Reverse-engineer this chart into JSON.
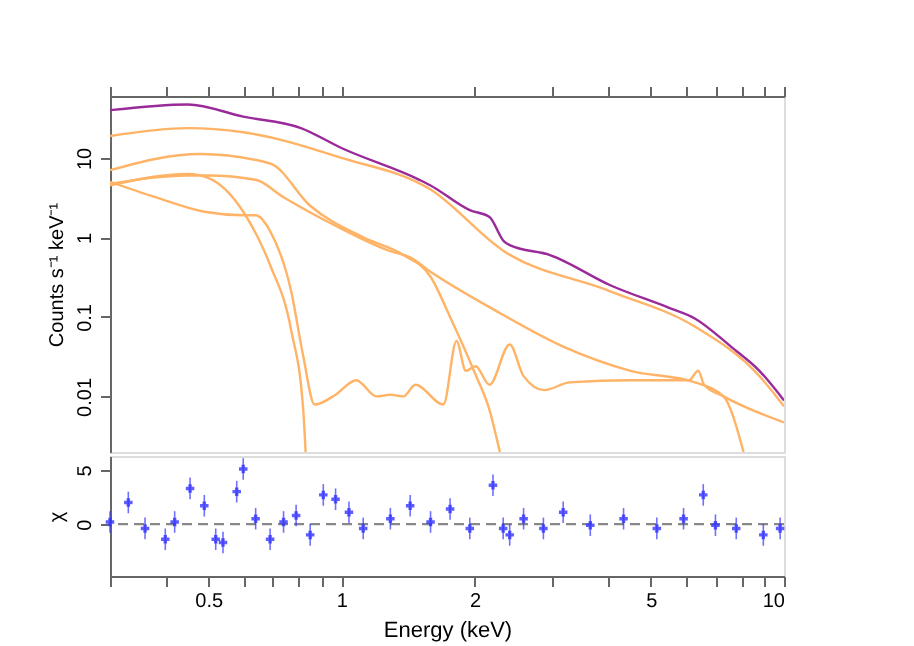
{
  "chart_data": [
    {
      "type": "line",
      "ylabel": "Counts s⁻¹ keV⁻¹",
      "log": "xy",
      "grid": false,
      "tick_labels": "y",
      "line_style": "solid",
      "xlim": [
        0.3,
        10
      ],
      "ylim": [
        0.002,
        60
      ],
      "xticks": [
        {
          "value": 0.3,
          "label": null
        },
        {
          "value": 0.4,
          "label": null
        },
        {
          "value": 0.5,
          "label": null
        },
        {
          "value": 0.6,
          "label": null
        },
        {
          "value": 0.7,
          "label": null
        },
        {
          "value": 0.8,
          "label": null
        },
        {
          "value": 0.9,
          "label": null
        },
        {
          "value": 1,
          "label": null
        },
        {
          "value": 2,
          "label": null
        },
        {
          "value": 3,
          "label": null
        },
        {
          "value": 4,
          "label": null
        },
        {
          "value": 5,
          "label": null
        },
        {
          "value": 6,
          "label": null
        },
        {
          "value": 7,
          "label": null
        },
        {
          "value": 8,
          "label": null
        },
        {
          "value": 9,
          "label": null
        },
        {
          "value": 10,
          "label": null
        }
      ],
      "yticks": [
        0.01,
        0.1,
        1,
        10
      ],
      "series": [
        {
          "color": "#ffb366",
          "x": [
            0.3,
            0.45,
            0.6,
            1.0,
            1.59,
            2.33,
            4.05,
            6.3,
            8.8,
            10
          ],
          "values": [
            18.8,
            23.7,
            21,
            10,
            4,
            0.67,
            0.21,
            0.075,
            0.018,
            0.0075
          ]
        },
        {
          "color": "#ffb366",
          "x": [
            0.3,
            0.48,
            0.69,
            0.85,
            1.12,
            1.38,
            1.59,
            1.76,
            2.0,
            2.16,
            2.28
          ],
          "values": [
            7.0,
            11.2,
            8.5,
            2.5,
            1,
            0.6,
            0.32,
            0.1,
            0.02,
            0.0068,
            0.002
          ]
        },
        {
          "color": "#ffb366",
          "x": [
            0.3,
            0.45,
            0.5,
            0.64,
            0.74,
            0.97,
            1.29,
            1.43,
            1.59,
            2.23,
            3.18,
            4.5,
            6.3,
            7.3,
            8.1
          ],
          "values": [
            4.7,
            6.0,
            6.0,
            5.3,
            3.2,
            1.4,
            0.67,
            0.56,
            0.37,
            0.12,
            0.042,
            0.021,
            0.015,
            0.01,
            0.002
          ]
        },
        {
          "color": "#ffb366",
          "x": [
            0.3,
            0.45,
            0.5,
            0.6,
            0.69,
            0.77,
            0.82,
            0.83
          ],
          "values": [
            4.5,
            6.3,
            5.6,
            2.1,
            0.45,
            0.068,
            0.0067,
            0.002
          ]
        },
        {
          "color": "#ffb366",
          "x": [
            0.3,
            0.38,
            0.49,
            0.6,
            0.64,
            0.69,
            0.77,
            0.82,
            0.87,
            0.97,
            1.08,
            1.2,
            1.29,
            1.38,
            1.47,
            1.7,
            1.82,
            1.91,
            2.01,
            2.16,
            2.4,
            2.58,
            2.87,
            3.28,
            4.5,
            6.1,
            6.4,
            6.6,
            7.3,
            10
          ],
          "values": [
            5.0,
            3.2,
            2.1,
            1.9,
            1.9,
            1.2,
            0.21,
            0.032,
            0.0079,
            0.0105,
            0.016,
            0.01,
            0.0105,
            0.01,
            0.014,
            0.0079,
            0.05,
            0.021,
            0.024,
            0.014,
            0.045,
            0.018,
            0.012,
            0.015,
            0.016,
            0.016,
            0.021,
            0.014,
            0.01,
            0.0047
          ]
        },
        {
          "color": "#9a2a9a",
          "x": [
            0.3,
            0.45,
            0.6,
            0.81,
            1.0,
            1.5,
            1.59,
            1.95,
            2.16,
            2.33,
            2.4,
            2.96,
            4.05,
            5.5,
            6.3,
            7.6,
            8.8,
            10
          ],
          "values": [
            39.8,
            47,
            33,
            23.7,
            13.3,
            5.3,
            4.5,
            2.2,
            1.8,
            0.89,
            0.8,
            0.6,
            0.25,
            0.13,
            0.095,
            0.042,
            0.021,
            0.0089
          ]
        }
      ]
    },
    {
      "type": "scatter",
      "xlabel": "Energy (keV)",
      "ylabel": "χ",
      "log": "x",
      "grid": false,
      "marker": "cross",
      "xlim": [
        0.3,
        10
      ],
      "ylim": [
        -4.8,
        6.3
      ],
      "xticks": [
        {
          "value": 0.3,
          "label": null
        },
        {
          "value": 0.4,
          "label": null
        },
        0.5,
        {
          "value": 0.6,
          "label": null
        },
        {
          "value": 0.7,
          "label": null
        },
        {
          "value": 0.8,
          "label": null
        },
        {
          "value": 0.9,
          "label": null
        },
        1,
        2,
        {
          "value": 3,
          "label": null
        },
        {
          "value": 4,
          "label": null
        },
        5,
        {
          "value": 6,
          "label": null
        },
        {
          "value": 7,
          "label": null
        },
        {
          "value": 8,
          "label": null
        },
        {
          "value": 9,
          "label": null
        },
        10
      ],
      "yticks": [
        0,
        5
      ],
      "ref_lines": [
        {
          "axis": "y",
          "value": 0,
          "color": "#888888",
          "line_style": "dashed"
        }
      ],
      "series": [
        {
          "color": "#3333ff",
          "x": [
            0.3,
            0.33,
            0.36,
            0.4,
            0.42,
            0.455,
            0.49,
            0.52,
            0.54,
            0.58,
            0.6,
            0.64,
            0.69,
            0.74,
            0.79,
            0.85,
            0.91,
            0.97,
            1.04,
            1.12,
            1.29,
            1.43,
            1.59,
            1.76,
            1.95,
            2.2,
            2.32,
            2.4,
            2.58,
            2.86,
            3.17,
            3.65,
            4.34,
            5.16,
            5.93,
            6.57,
            7.0,
            7.8,
            8.98,
            9.8
          ],
          "values": [
            0.2,
            2.0,
            -0.4,
            -1.4,
            0.2,
            3.3,
            1.7,
            -1.4,
            -1.7,
            3.0,
            5.1,
            0.5,
            -1.4,
            0.2,
            0.8,
            -1.0,
            2.7,
            2.3,
            1.1,
            -0.4,
            0.5,
            1.7,
            0.2,
            1.4,
            -0.4,
            3.6,
            -0.4,
            -1.0,
            0.5,
            -0.4,
            1.1,
            -0.1,
            0.5,
            -0.4,
            0.5,
            2.7,
            -0.1,
            -0.4,
            -1.0,
            -0.4
          ],
          "errors": [
            1,
            1,
            1,
            1,
            1,
            1,
            1,
            1,
            1,
            1,
            1,
            1,
            1,
            1,
            1,
            1,
            1,
            1,
            1,
            1,
            1,
            1,
            1,
            1,
            1,
            1,
            1,
            1,
            1,
            1,
            1,
            1,
            1,
            1,
            1,
            1,
            1,
            1,
            1,
            1
          ]
        }
      ]
    }
  ]
}
